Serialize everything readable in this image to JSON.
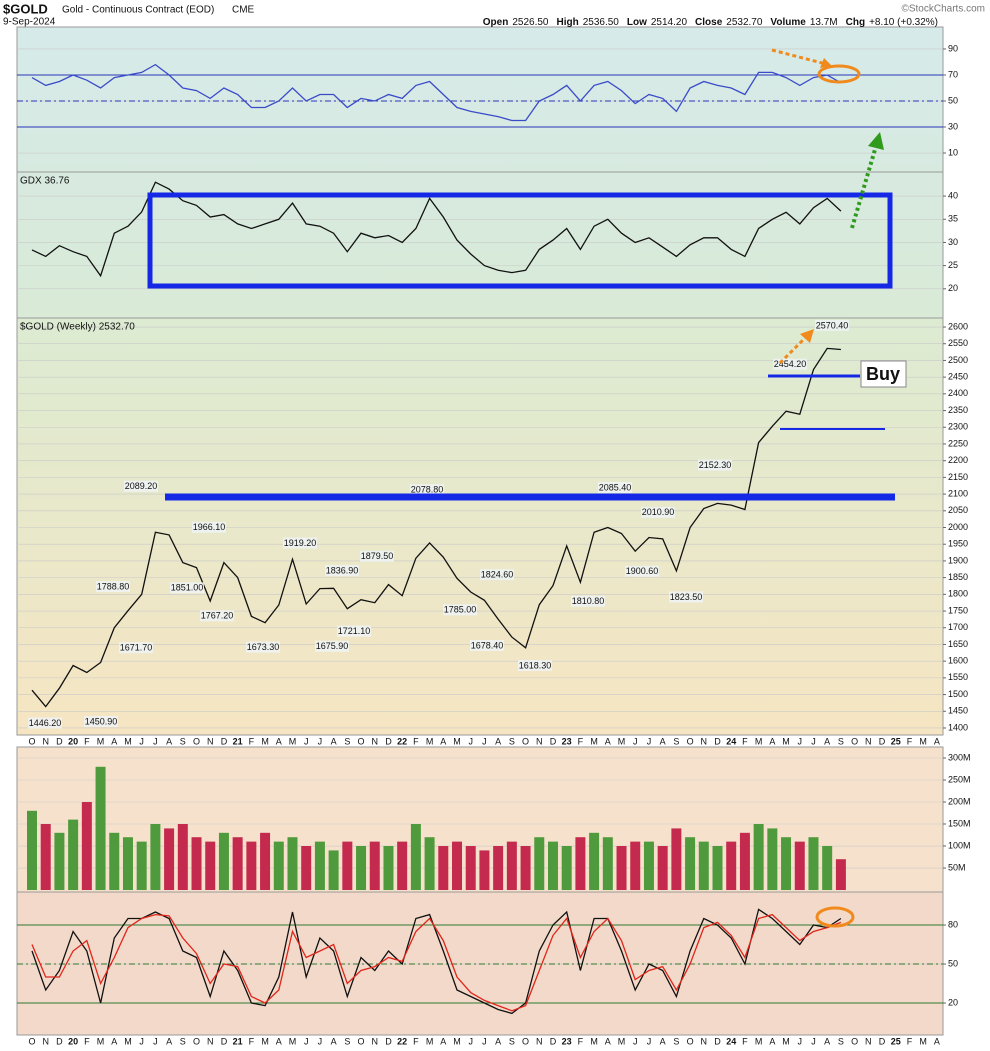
{
  "header": {
    "symbol": "$GOLD",
    "description": "Gold - Continuous Contract (EOD)",
    "exchange": "CME",
    "date": "9-Sep-2024",
    "stats": [
      {
        "name": "Open",
        "value": "2526.50"
      },
      {
        "name": "High",
        "value": "2536.50"
      },
      {
        "name": "Low",
        "value": "2514.20"
      },
      {
        "name": "Close",
        "value": "2532.70"
      },
      {
        "name": "Volume",
        "value": "13.7M"
      },
      {
        "name": "Chg",
        "value": "+8.10 (+0.32%)"
      }
    ],
    "credit": "©StockCharts.com"
  },
  "chart_data": [
    {
      "type": "line",
      "ylim": [
        -4.6,
        106.9
      ],
      "yticks": [
        10,
        30,
        50,
        70,
        90
      ],
      "grid": true,
      "hlines": [
        70,
        50,
        30
      ],
      "hline_styles": [
        "solid",
        "dashed",
        "solid"
      ],
      "hline_color": "#2a35b8",
      "series": [
        {
          "color": "#3a4bc8",
          "values": [
            68,
            62,
            65,
            70,
            66,
            60,
            68,
            70,
            72,
            78,
            70,
            60,
            58,
            52,
            60,
            55,
            45,
            45,
            50,
            60,
            50,
            55,
            55,
            45,
            52,
            50,
            55,
            52,
            62,
            65,
            55,
            45,
            42,
            40,
            38,
            35,
            35,
            50,
            55,
            62,
            50,
            62,
            65,
            58,
            48,
            55,
            52,
            42,
            60,
            65,
            62,
            60,
            55,
            72,
            72,
            68,
            62,
            68,
            70,
            64
          ]
        }
      ]
    },
    {
      "type": "line",
      "title": "GDX 36.76",
      "ylim": [
        13.7,
        45.2
      ],
      "yticks": [
        20,
        25,
        30,
        35,
        40
      ],
      "grid": true,
      "series": [
        {
          "color": "#111111",
          "values": [
            28.4,
            27,
            29.3,
            28,
            27,
            22.8,
            32,
            33.5,
            36.6,
            43,
            41.5,
            39,
            38,
            35.5,
            36,
            34,
            33,
            34,
            35,
            38.5,
            34,
            33.5,
            32,
            28,
            32,
            31,
            31.5,
            30,
            33,
            39.5,
            35.5,
            30.5,
            27.5,
            25,
            24,
            23.5,
            24,
            28.5,
            30.5,
            33,
            28.5,
            33.5,
            35,
            32,
            30,
            31,
            29,
            27,
            29.5,
            31,
            31,
            28.5,
            27,
            33,
            35,
            36.5,
            34,
            37.5,
            39.5,
            36.76
          ]
        }
      ]
    },
    {
      "type": "line",
      "title": "$GOLD (Weekly) 2532.70",
      "buy_label": "Buy",
      "categories": [
        "O",
        "N",
        "D",
        "20",
        "F",
        "M",
        "A",
        "M",
        "J",
        "J",
        "A",
        "S",
        "O",
        "N",
        "D",
        "21",
        "F",
        "M",
        "A",
        "M",
        "J",
        "J",
        "A",
        "S",
        "O",
        "N",
        "D",
        "22",
        "F",
        "M",
        "A",
        "M",
        "J",
        "J",
        "A",
        "S",
        "O",
        "N",
        "D",
        "23",
        "F",
        "M",
        "A",
        "M",
        "J",
        "J",
        "A",
        "S",
        "O",
        "N",
        "D",
        "24",
        "F",
        "M",
        "A",
        "M",
        "J",
        "J",
        "A",
        "S",
        "O",
        "N",
        "D",
        "25",
        "F",
        "M",
        "A"
      ],
      "ylim": [
        1379,
        2627
      ],
      "yticks": [
        1400,
        1450,
        1500,
        1550,
        1600,
        1650,
        1700,
        1750,
        1800,
        1850,
        1900,
        1950,
        2000,
        2050,
        2100,
        2150,
        2200,
        2250,
        2300,
        2350,
        2400,
        2450,
        2500,
        2550,
        2600
      ],
      "grid": true,
      "series": [
        {
          "color": "#111111",
          "values": [
            1513,
            1464,
            1519,
            1587,
            1566,
            1596,
            1700,
            1751,
            1800,
            1986,
            1978,
            1895,
            1880,
            1780,
            1895,
            1850,
            1734,
            1715,
            1768,
            1905,
            1771,
            1817,
            1818,
            1757,
            1784,
            1775,
            1829,
            1796,
            1908,
            1954,
            1911,
            1848,
            1807,
            1782,
            1726,
            1672,
            1640,
            1769,
            1826,
            1945,
            1836,
            1986,
            2000,
            1982,
            1929,
            1970,
            1966,
            1870,
            2000,
            2057,
            2072,
            2067,
            2054,
            2254,
            2303,
            2348,
            2339,
            2473,
            2536,
            2532.7,
            null,
            null,
            null,
            null,
            null,
            null,
            null
          ]
        }
      ],
      "annotations": [
        {
          "value": 1446.2,
          "label": "1446.20"
        },
        {
          "value": 1450.9,
          "label": "1450.90"
        },
        {
          "value": 1788.8,
          "label": "1788.80"
        },
        {
          "value": 1671.7,
          "label": "1671.70"
        },
        {
          "value": 2089.2,
          "label": "2089.20"
        },
        {
          "value": 1851,
          "label": "1851.00"
        },
        {
          "value": 1966.1,
          "label": "1966.10"
        },
        {
          "value": 1767.2,
          "label": "1767.20"
        },
        {
          "value": 1673.3,
          "label": "1673.30"
        },
        {
          "value": 1919.2,
          "label": "1919.20"
        },
        {
          "value": 1675.9,
          "label": "1675.90"
        },
        {
          "value": 1836.9,
          "label": "1836.90"
        },
        {
          "value": 1721.1,
          "label": "1721.10"
        },
        {
          "value": 1879.5,
          "label": "1879.50"
        },
        {
          "value": 2078.8,
          "label": "2078.80"
        },
        {
          "value": 1785,
          "label": "1785.00"
        },
        {
          "value": 1824.6,
          "label": "1824.60"
        },
        {
          "value": 1678.4,
          "label": "1678.40"
        },
        {
          "value": 1618.3,
          "label": "1618.30"
        },
        {
          "value": 1810.8,
          "label": "1810.80"
        },
        {
          "value": 2085.4,
          "label": "2085.40"
        },
        {
          "value": 2010.9,
          "label": "2010.90"
        },
        {
          "value": 1900.6,
          "label": "1900.60"
        },
        {
          "value": 1823.5,
          "label": "1823.50"
        },
        {
          "value": 2152.3,
          "label": "2152.30"
        },
        {
          "value": 2454.2,
          "label": "2454.20"
        },
        {
          "value": 2570.4,
          "label": "2570.40"
        }
      ]
    },
    {
      "type": "bar",
      "ylim": [
        -4500000,
        325000000
      ],
      "grid": true,
      "up_color": "#4f9a3c",
      "down_color": "#c42a4e",
      "yticks": [
        {
          "value": 50000000,
          "label": "50M"
        },
        {
          "value": 100000000,
          "label": "100M"
        },
        {
          "value": 150000000,
          "label": "150M"
        },
        {
          "value": 200000000,
          "label": "200M"
        },
        {
          "value": 250000000,
          "label": "250M"
        },
        {
          "value": 300000000,
          "label": "300M"
        }
      ],
      "values": [
        180000000,
        150000000,
        130000000,
        160000000,
        200000000,
        280000000,
        130000000,
        120000000,
        110000000,
        150000000,
        140000000,
        150000000,
        120000000,
        110000000,
        130000000,
        120000000,
        110000000,
        130000000,
        110000000,
        120000000,
        100000000,
        110000000,
        90000000,
        110000000,
        100000000,
        110000000,
        100000000,
        110000000,
        150000000,
        120000000,
        100000000,
        110000000,
        100000000,
        90000000,
        100000000,
        110000000,
        100000000,
        120000000,
        110000000,
        100000000,
        120000000,
        130000000,
        120000000,
        100000000,
        110000000,
        110000000,
        100000000,
        140000000,
        120000000,
        110000000,
        100000000,
        110000000,
        130000000,
        150000000,
        140000000,
        120000000,
        110000000,
        120000000,
        100000000,
        70000000
      ]
    },
    {
      "type": "line",
      "ylim": [
        -4.6,
        105.4
      ],
      "yticks": [
        20,
        50,
        80
      ],
      "grid": true,
      "hlines": [
        80,
        50,
        20
      ],
      "hline_styles": [
        "solid",
        "dashed",
        "solid"
      ],
      "hline_color": "#2e7a34",
      "categories": [
        "O",
        "N",
        "D",
        "20",
        "F",
        "M",
        "A",
        "M",
        "J",
        "J",
        "A",
        "S",
        "O",
        "N",
        "D",
        "21",
        "F",
        "M",
        "A",
        "M",
        "J",
        "J",
        "A",
        "S",
        "O",
        "N",
        "D",
        "22",
        "F",
        "M",
        "A",
        "M",
        "J",
        "J",
        "A",
        "S",
        "O",
        "N",
        "D",
        "23",
        "F",
        "M",
        "A",
        "M",
        "J",
        "J",
        "A",
        "S",
        "O",
        "N",
        "D",
        "24",
        "F",
        "M",
        "A",
        "M",
        "J",
        "J",
        "A",
        "S",
        "O",
        "N",
        "D",
        "25",
        "F",
        "M",
        "A"
      ],
      "series": [
        {
          "color": "#111111",
          "values": [
            60,
            30,
            45,
            75,
            60,
            20,
            70,
            85,
            85,
            90,
            85,
            60,
            55,
            25,
            60,
            45,
            20,
            18,
            40,
            90,
            40,
            70,
            60,
            25,
            55,
            45,
            60,
            50,
            85,
            88,
            60,
            30,
            25,
            20,
            15,
            12,
            20,
            60,
            80,
            90,
            45,
            85,
            85,
            60,
            30,
            50,
            45,
            25,
            60,
            85,
            80,
            70,
            50,
            92,
            85,
            75,
            65,
            80,
            78,
            85,
            null,
            null,
            null,
            null,
            null,
            null,
            null
          ]
        },
        {
          "color": "#e0261b",
          "values": [
            65,
            40,
            40,
            60,
            68,
            35,
            55,
            78,
            85,
            88,
            87,
            70,
            58,
            35,
            50,
            48,
            25,
            20,
            30,
            75,
            55,
            60,
            65,
            35,
            45,
            48,
            55,
            52,
            75,
            85,
            68,
            40,
            28,
            22,
            18,
            14,
            18,
            45,
            72,
            85,
            55,
            75,
            85,
            68,
            38,
            45,
            48,
            30,
            50,
            78,
            82,
            72,
            55,
            85,
            88,
            78,
            68,
            75,
            78,
            82,
            null,
            null,
            null,
            null,
            null,
            null,
            null
          ]
        }
      ]
    }
  ]
}
